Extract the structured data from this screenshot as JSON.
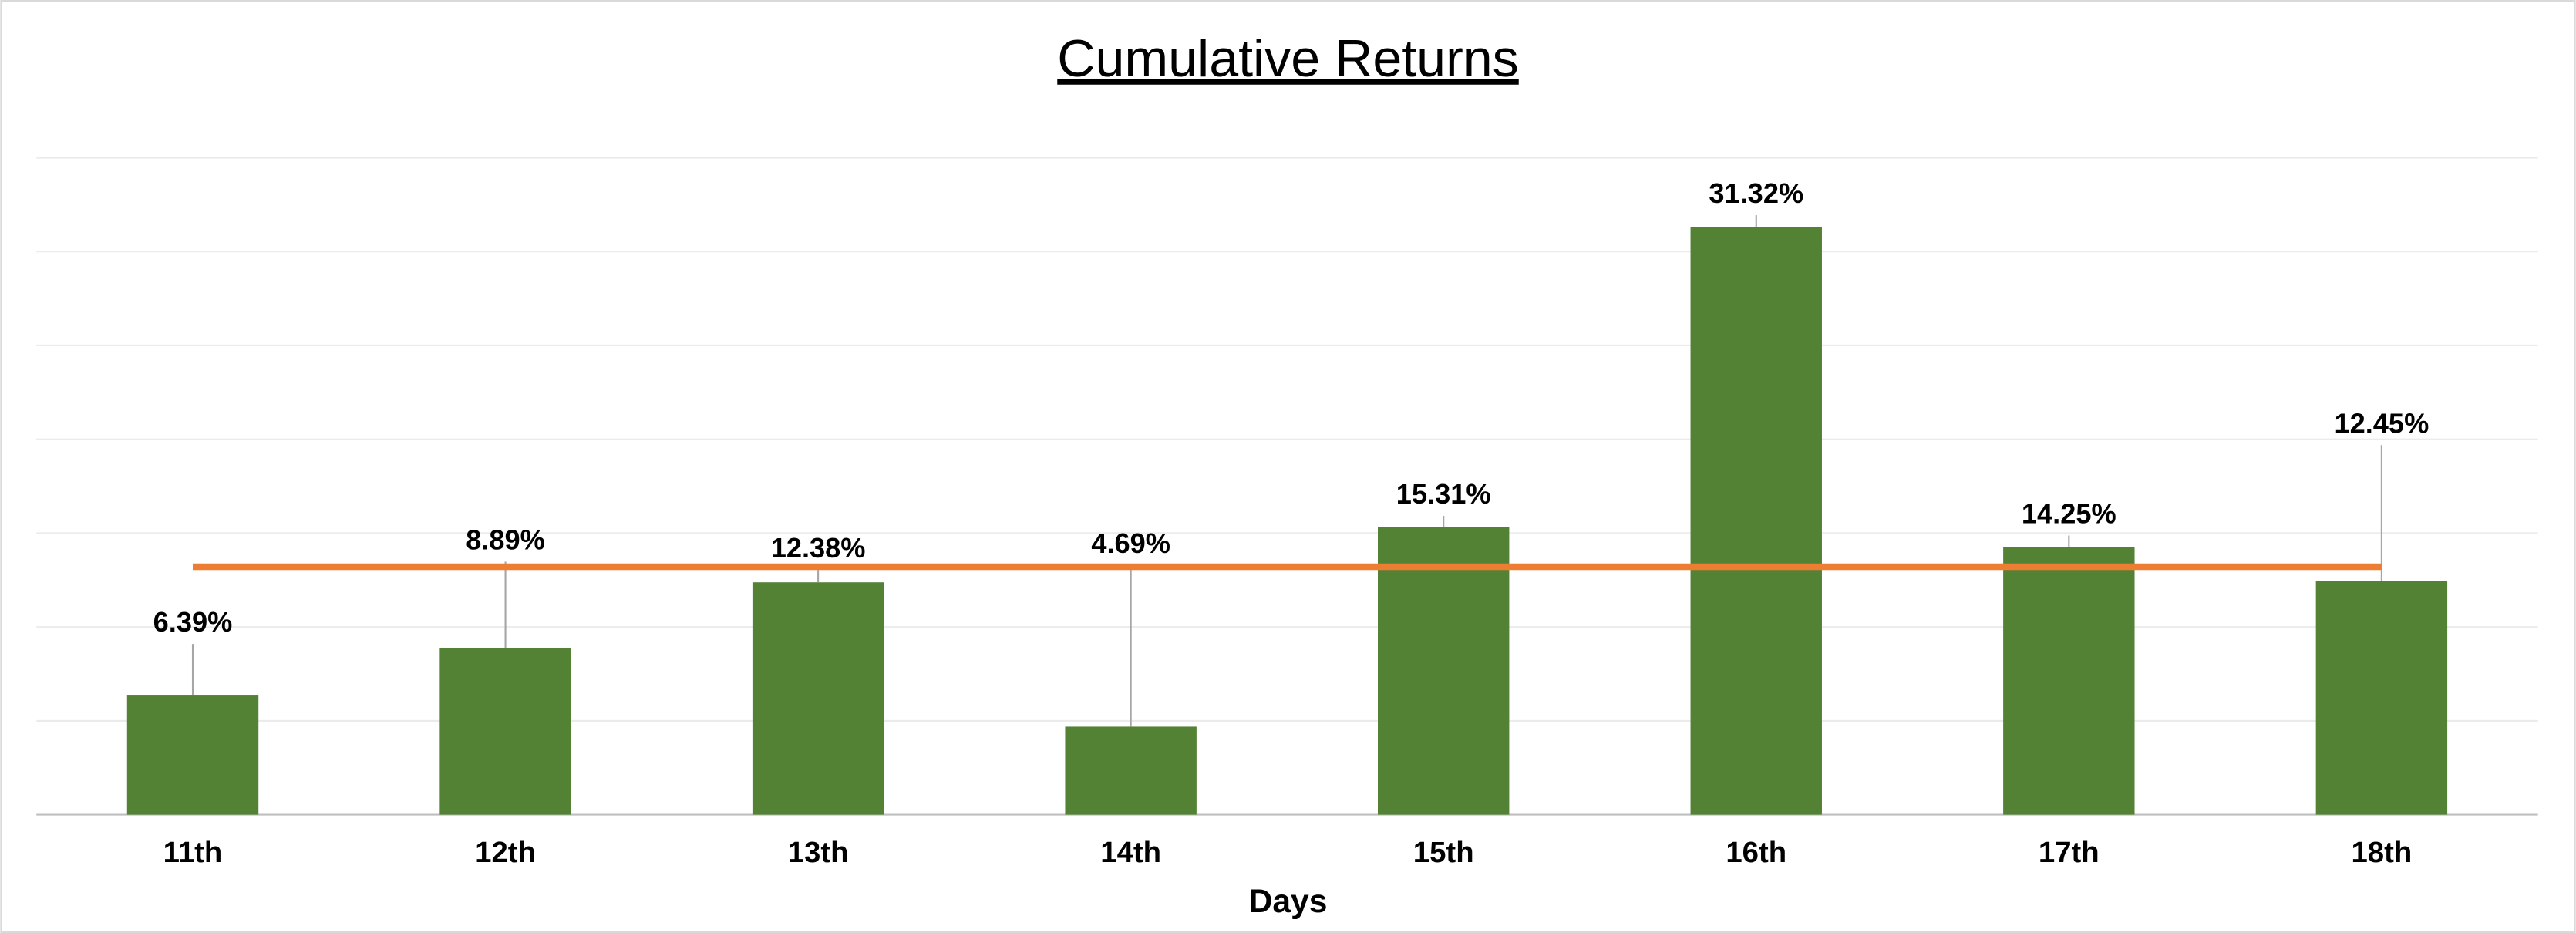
{
  "chart_data": {
    "type": "bar",
    "title": "Cumulative Returns",
    "x_label": "Days",
    "categories": [
      "11th",
      "12th",
      "13th",
      "14th",
      "15th",
      "16th",
      "17th",
      "18th"
    ],
    "values": [
      6.39,
      8.89,
      12.38,
      4.69,
      15.31,
      31.32,
      14.25,
      12.45
    ],
    "value_labels": [
      "6.39%",
      "8.89%",
      "12.38%",
      "4.69%",
      "15.31%",
      "31.32%",
      "14.25%",
      "12.45%"
    ],
    "color": "#548235",
    "reference_line": {
      "value": 13.21,
      "color": "#ed7d31"
    },
    "ylim": [
      0,
      35
    ],
    "yticks": [
      0,
      5,
      10,
      15,
      20,
      25,
      30,
      35
    ],
    "ytick_labels": false,
    "grid": true
  }
}
